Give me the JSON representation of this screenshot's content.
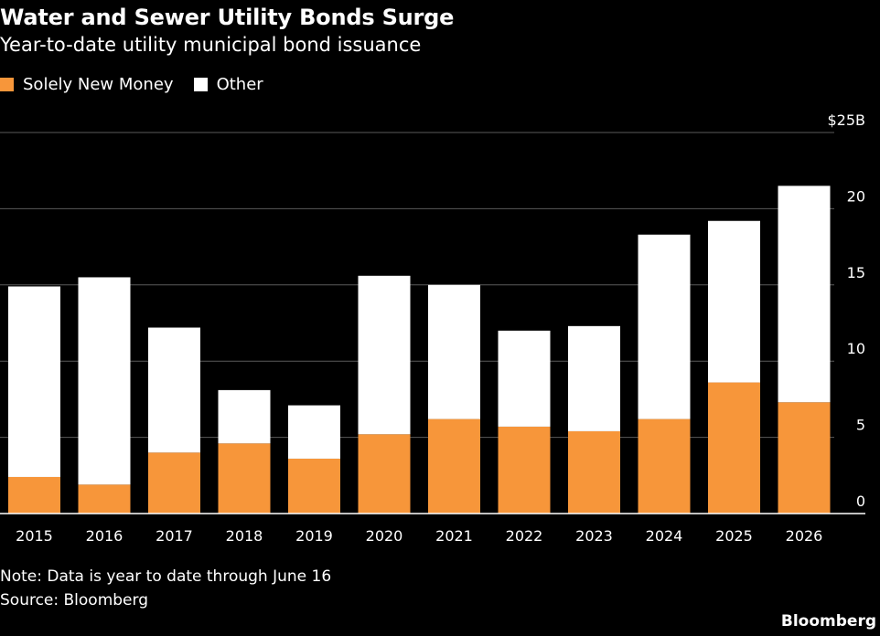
{
  "title": "Water and Sewer Utility Bonds Surge",
  "subtitle": "Year-to-date utility municipal bond issuance",
  "legend": [
    {
      "label": "Solely New Money",
      "color": "#f7963a"
    },
    {
      "label": "Other",
      "color": "#ffffff"
    }
  ],
  "note": "Note: Data is year to date through June 16",
  "source": "Source: Bloomberg",
  "brand": "Bloomberg",
  "chart_data": {
    "type": "bar",
    "stacked": true,
    "categories": [
      "2015",
      "2016",
      "2017",
      "2018",
      "2019",
      "2020",
      "2021",
      "2022",
      "2023",
      "2024",
      "2025",
      "2026"
    ],
    "series": [
      {
        "name": "Solely New Money",
        "color": "#f7963a",
        "values": [
          2.4,
          1.9,
          4.0,
          4.6,
          3.6,
          5.2,
          6.2,
          5.7,
          5.4,
          6.2,
          8.6,
          7.3
        ]
      },
      {
        "name": "Other",
        "color": "#ffffff",
        "values": [
          12.5,
          13.6,
          8.2,
          3.5,
          3.5,
          10.4,
          8.8,
          6.3,
          6.9,
          12.1,
          10.6,
          14.2
        ]
      }
    ],
    "yticks": [
      "0",
      "5",
      "10",
      "15",
      "20",
      "$25B"
    ],
    "ylim": [
      0,
      25
    ],
    "grid": true,
    "legend_position": "top-left"
  }
}
